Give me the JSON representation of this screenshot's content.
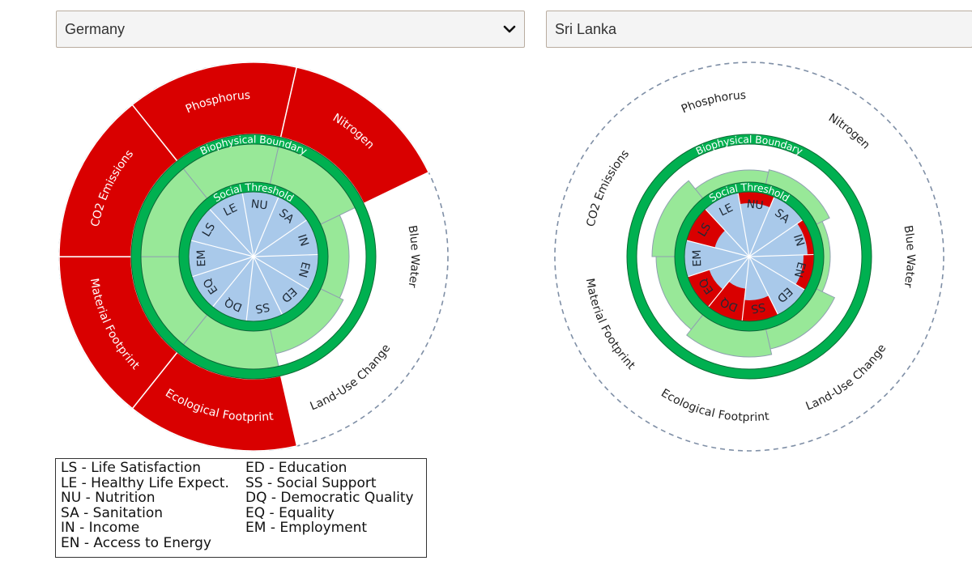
{
  "selectors": {
    "left": {
      "value": "Germany"
    },
    "right": {
      "value": "Sri Lanka"
    }
  },
  "colors": {
    "overshoot_red": "#d90000",
    "within_green": "#98e898",
    "boundary_green": "#00b050",
    "social_blue": "#a9c9ea",
    "dash_grey": "#7f8fa6"
  },
  "labels": {
    "biophysical_boundary": "Biophysical Boundary",
    "social_threshold": "Social Threshold"
  },
  "biophysical_indicators": [
    "Phosphorus",
    "Nitrogen",
    "Blue Water",
    "Land-Use Change",
    "Ecological Footprint",
    "Material Footprint",
    "CO2 Emissions"
  ],
  "social_indicators": [
    "NU",
    "SA",
    "IN",
    "EN",
    "ED",
    "SS",
    "DQ",
    "EQ",
    "EM",
    "LS",
    "LE"
  ],
  "chart_data": [
    {
      "type": "radial-bar",
      "country": "Germany",
      "biophysical": [
        {
          "name": "Phosphorus",
          "overshoot": true
        },
        {
          "name": "Nitrogen",
          "overshoot": true
        },
        {
          "name": "Blue Water",
          "overshoot": false
        },
        {
          "name": "Land-Use Change",
          "overshoot": false
        },
        {
          "name": "Ecological Footprint",
          "overshoot": true
        },
        {
          "name": "Material Footprint",
          "overshoot": true
        },
        {
          "name": "CO2 Emissions",
          "overshoot": true
        }
      ],
      "social": [
        {
          "name": "NU",
          "achieved": true
        },
        {
          "name": "SA",
          "achieved": true
        },
        {
          "name": "IN",
          "achieved": true
        },
        {
          "name": "EN",
          "achieved": true
        },
        {
          "name": "ED",
          "achieved": true
        },
        {
          "name": "SS",
          "achieved": true
        },
        {
          "name": "DQ",
          "achieved": true
        },
        {
          "name": "EQ",
          "achieved": true
        },
        {
          "name": "EM",
          "achieved": true
        },
        {
          "name": "LS",
          "achieved": true
        },
        {
          "name": "LE",
          "achieved": true
        }
      ]
    },
    {
      "type": "radial-bar",
      "country": "Sri Lanka",
      "biophysical": [
        {
          "name": "Phosphorus",
          "overshoot": false
        },
        {
          "name": "Nitrogen",
          "overshoot": false
        },
        {
          "name": "Blue Water",
          "overshoot": false
        },
        {
          "name": "Land-Use Change",
          "overshoot": false
        },
        {
          "name": "Ecological Footprint",
          "overshoot": false
        },
        {
          "name": "Material Footprint",
          "overshoot": false
        },
        {
          "name": "CO2 Emissions",
          "overshoot": false
        }
      ],
      "social": [
        {
          "name": "NU",
          "achieved": false
        },
        {
          "name": "SA",
          "achieved": true
        },
        {
          "name": "IN",
          "achieved": false
        },
        {
          "name": "EN",
          "achieved": false
        },
        {
          "name": "ED",
          "achieved": true
        },
        {
          "name": "SS",
          "achieved": false
        },
        {
          "name": "DQ",
          "achieved": false
        },
        {
          "name": "EQ",
          "achieved": false
        },
        {
          "name": "EM",
          "achieved": true
        },
        {
          "name": "LS",
          "achieved": false
        },
        {
          "name": "LE",
          "achieved": true
        }
      ]
    }
  ],
  "legend": {
    "column1": [
      "LS - Life Satisfaction",
      "LE - Healthy Life Expect.",
      "NU - Nutrition",
      "SA - Sanitation",
      "IN - Income",
      "EN - Access to Energy"
    ],
    "column2": [
      "ED - Education",
      "SS - Social Support",
      "DQ - Democratic Quality",
      "EQ - Equality",
      "EM - Employment"
    ]
  }
}
